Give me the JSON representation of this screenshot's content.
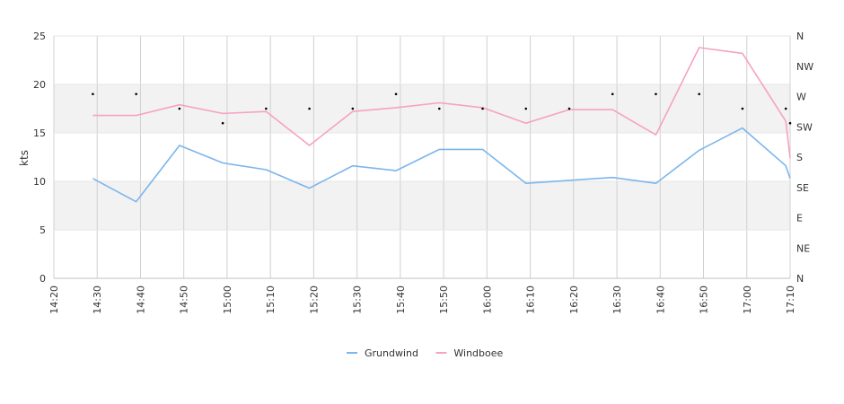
{
  "chart_data": {
    "type": "line",
    "ylabel": "kts",
    "ylim": [
      0,
      25
    ],
    "y_ticks": [
      "0",
      "5",
      "10",
      "15",
      "20",
      "25"
    ],
    "x_ticks": [
      "14:20",
      "14:30",
      "14:40",
      "14:50",
      "15:00",
      "15:10",
      "15:20",
      "15:30",
      "15:40",
      "15:50",
      "16:00",
      "16:10",
      "16:20",
      "16:30",
      "16:40",
      "16:50",
      "17:00",
      "17:10"
    ],
    "x_range": [
      "14:20",
      "17:10"
    ],
    "right_axis_labels": [
      "N",
      "NW",
      "W",
      "SW",
      "S",
      "SE",
      "E",
      "NE",
      "N"
    ],
    "bands": [
      [
        5,
        10
      ],
      [
        15,
        20
      ]
    ],
    "grid": true,
    "legend_position": "bottom-center",
    "series": [
      {
        "name": "Grundwind",
        "color": "#7cb5ec",
        "points": [
          [
            "14:29",
            10.3
          ],
          [
            "14:39",
            7.9
          ],
          [
            "14:49",
            13.7
          ],
          [
            "14:59",
            11.9
          ],
          [
            "15:09",
            11.2
          ],
          [
            "15:19",
            9.3
          ],
          [
            "15:29",
            11.6
          ],
          [
            "15:39",
            11.1
          ],
          [
            "15:49",
            13.3
          ],
          [
            "15:59",
            13.3
          ],
          [
            "16:09",
            9.8
          ],
          [
            "16:19",
            10.1
          ],
          [
            "16:29",
            10.4
          ],
          [
            "16:39",
            9.8
          ],
          [
            "16:49",
            13.2
          ],
          [
            "16:59",
            15.5
          ],
          [
            "17:09",
            11.6
          ],
          [
            "17:10",
            10.3
          ]
        ]
      },
      {
        "name": "Windboee",
        "color": "#f7a1c4",
        "points": [
          [
            "14:29",
            16.8
          ],
          [
            "14:39",
            16.8
          ],
          [
            "14:49",
            17.9
          ],
          [
            "14:59",
            17.0
          ],
          [
            "15:09",
            17.2
          ],
          [
            "15:19",
            13.7
          ],
          [
            "15:29",
            17.2
          ],
          [
            "15:39",
            17.6
          ],
          [
            "15:49",
            18.1
          ],
          [
            "15:59",
            17.6
          ],
          [
            "16:09",
            16.0
          ],
          [
            "16:19",
            17.4
          ],
          [
            "16:29",
            17.4
          ],
          [
            "16:39",
            14.8
          ],
          [
            "16:49",
            23.8
          ],
          [
            "16:59",
            23.2
          ],
          [
            "17:09",
            16.2
          ],
          [
            "17:10",
            12.4
          ]
        ]
      }
    ],
    "direction_markers": [
      [
        "14:29",
        19.0
      ],
      [
        "14:39",
        19.0
      ],
      [
        "14:49",
        17.5
      ],
      [
        "14:59",
        16.0
      ],
      [
        "15:09",
        17.5
      ],
      [
        "15:19",
        17.5
      ],
      [
        "15:29",
        17.5
      ],
      [
        "15:39",
        19.0
      ],
      [
        "15:49",
        17.5
      ],
      [
        "15:59",
        17.5
      ],
      [
        "16:09",
        17.5
      ],
      [
        "16:19",
        17.5
      ],
      [
        "16:29",
        19.0
      ],
      [
        "16:39",
        19.0
      ],
      [
        "16:49",
        19.0
      ],
      [
        "16:59",
        17.5
      ],
      [
        "17:09",
        17.5
      ],
      [
        "17:10",
        16.0
      ]
    ]
  }
}
